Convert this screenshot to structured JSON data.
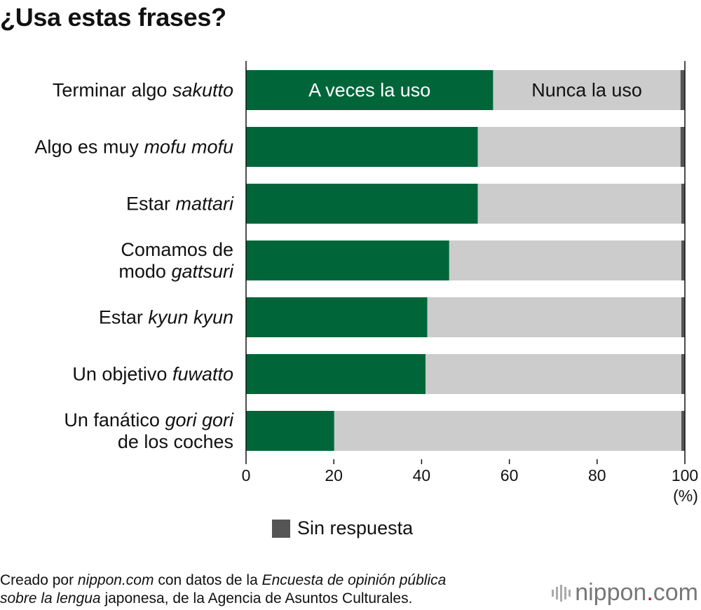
{
  "title": "¿Usa estas frases?",
  "chart_data": {
    "type": "bar",
    "orientation": "horizontal",
    "stacked": true,
    "categories": [
      {
        "parts": [
          {
            "text": "Terminar algo ",
            "italic": false
          },
          {
            "text": "sakutto",
            "italic": true
          }
        ]
      },
      {
        "parts": [
          {
            "text": "Algo es muy ",
            "italic": false
          },
          {
            "text": "mofu mofu",
            "italic": true
          }
        ]
      },
      {
        "parts": [
          {
            "text": "Estar ",
            "italic": false
          },
          {
            "text": "mattari",
            "italic": true
          }
        ]
      },
      {
        "parts": [
          {
            "text": "Comamos de",
            "italic": false
          },
          {
            "text": "\n",
            "italic": false
          },
          {
            "text": "modo ",
            "italic": false
          },
          {
            "text": "gattsuri",
            "italic": true
          }
        ]
      },
      {
        "parts": [
          {
            "text": "Estar ",
            "italic": false
          },
          {
            "text": "kyun kyun",
            "italic": true
          }
        ]
      },
      {
        "parts": [
          {
            "text": "Un objetivo ",
            "italic": false
          },
          {
            "text": "fuwatto",
            "italic": true
          }
        ]
      },
      {
        "parts": [
          {
            "text": "Un fanático ",
            "italic": false
          },
          {
            "text": "gori gori",
            "italic": true
          },
          {
            "text": "\n",
            "italic": false
          },
          {
            "text": "de los coches",
            "italic": false
          }
        ]
      }
    ],
    "series": [
      {
        "name": "A veces la uso",
        "color": "#00663a",
        "text_color": "#ffffff",
        "values": [
          56.3,
          52.8,
          52.8,
          46.3,
          41.3,
          40.9,
          20.1
        ]
      },
      {
        "name": "Nunca la uso",
        "color": "#cccccc",
        "text_color": "#111111",
        "values": [
          42.7,
          46.2,
          46.4,
          52.9,
          57.9,
          58.3,
          79.1
        ]
      },
      {
        "name": "Sin respuesta",
        "color": "#555555",
        "values": [
          1.0,
          1.0,
          0.8,
          0.8,
          0.8,
          0.8,
          0.8
        ]
      }
    ],
    "inline_series_labels_on_first_bar": [
      "A veces la uso",
      "Nunca la uso"
    ],
    "legend": {
      "entries": [
        "Sin respuesta"
      ],
      "placement": "bottom-center"
    },
    "xlim": [
      0,
      100
    ],
    "xticks": [
      0,
      20,
      40,
      60,
      80,
      100
    ],
    "xunit": "(%)",
    "grid": false
  },
  "footer": {
    "parts": [
      {
        "text": "Creado por ",
        "italic": false
      },
      {
        "text": "nippon.com",
        "italic": true
      },
      {
        "text": " con datos de la ",
        "italic": false
      },
      {
        "text": "Encuesta de opinión pública",
        "italic": true
      },
      {
        "text": "\n",
        "italic": false
      },
      {
        "text": "sobre la lengua",
        "italic": true
      },
      {
        "text": " japonesa, de la Agencia de Asuntos Culturales.",
        "italic": false
      }
    ]
  },
  "logo": {
    "name": "nippon",
    "dot": ".",
    "suffix": "com",
    "accent_color": "#c8102e",
    "icon": "nippon-logo-icon"
  }
}
